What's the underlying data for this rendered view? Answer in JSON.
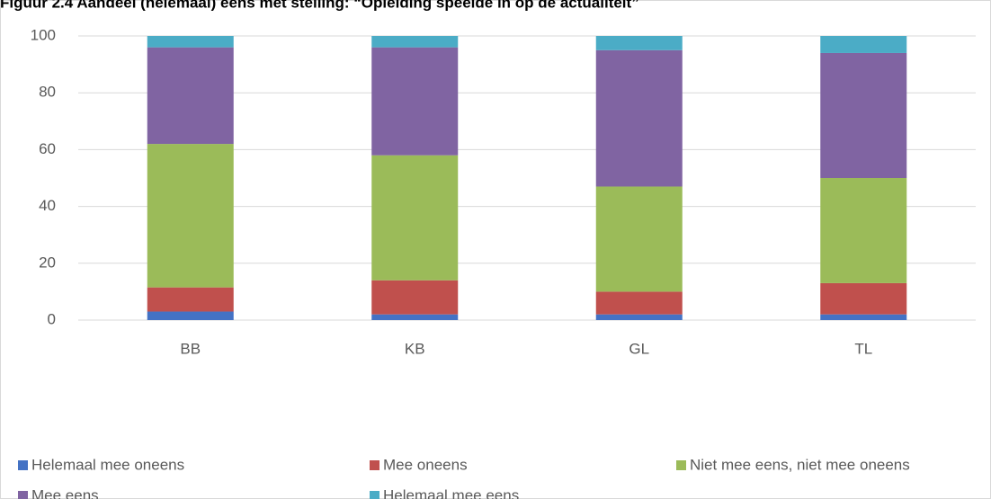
{
  "chart_data": {
    "type": "stacked_bar",
    "title": "Figuur 2.4 Aandeel (helemaal) eens met stelling: “Opleiding speelde in op de actualiteit”",
    "categories": [
      "BB",
      "KB",
      "GL",
      "TL"
    ],
    "series": [
      {
        "name": "Helemaal mee oneens",
        "color": "#4472c4",
        "values": [
          3,
          2,
          2,
          2
        ]
      },
      {
        "name": "Mee oneens",
        "color": "#c0504d",
        "values": [
          8.5,
          12,
          8,
          11
        ]
      },
      {
        "name": "Niet mee eens, niet mee oneens",
        "color": "#9bbb59",
        "values": [
          50.5,
          44,
          37,
          37
        ]
      },
      {
        "name": "Mee eens",
        "color": "#8064a2",
        "values": [
          34,
          38,
          48,
          44
        ]
      },
      {
        "name": "Helemaal mee eens",
        "color": "#4bacc6",
        "values": [
          4,
          4,
          5,
          6
        ]
      }
    ],
    "ylim": [
      0,
      100
    ],
    "yticks": [
      0,
      20,
      40,
      60,
      80,
      100
    ],
    "grid": true,
    "legend": "bottom"
  }
}
